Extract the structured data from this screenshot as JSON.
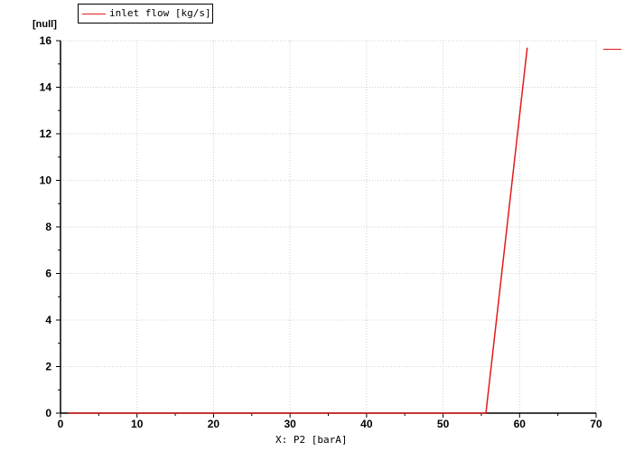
{
  "legend": {
    "label": "inlet flow [kg/s]",
    "color": "#e11b1b"
  },
  "chart_data": {
    "type": "line",
    "xlabel": "X: P2 [barA]",
    "ylabel": "[null]",
    "xlim": [
      0,
      70
    ],
    "ylim": [
      0,
      16
    ],
    "xticks": [
      0,
      10,
      20,
      30,
      40,
      50,
      60,
      70
    ],
    "yticks": [
      0,
      2,
      4,
      6,
      8,
      10,
      12,
      14,
      16
    ],
    "grid": true,
    "legend_position": "top-left",
    "series": [
      {
        "name": "inlet flow [kg/s]",
        "color": "#e11b1b",
        "x": [
          1,
          55.6,
          61.0
        ],
        "y": [
          0,
          0,
          15.7
        ]
      }
    ]
  }
}
